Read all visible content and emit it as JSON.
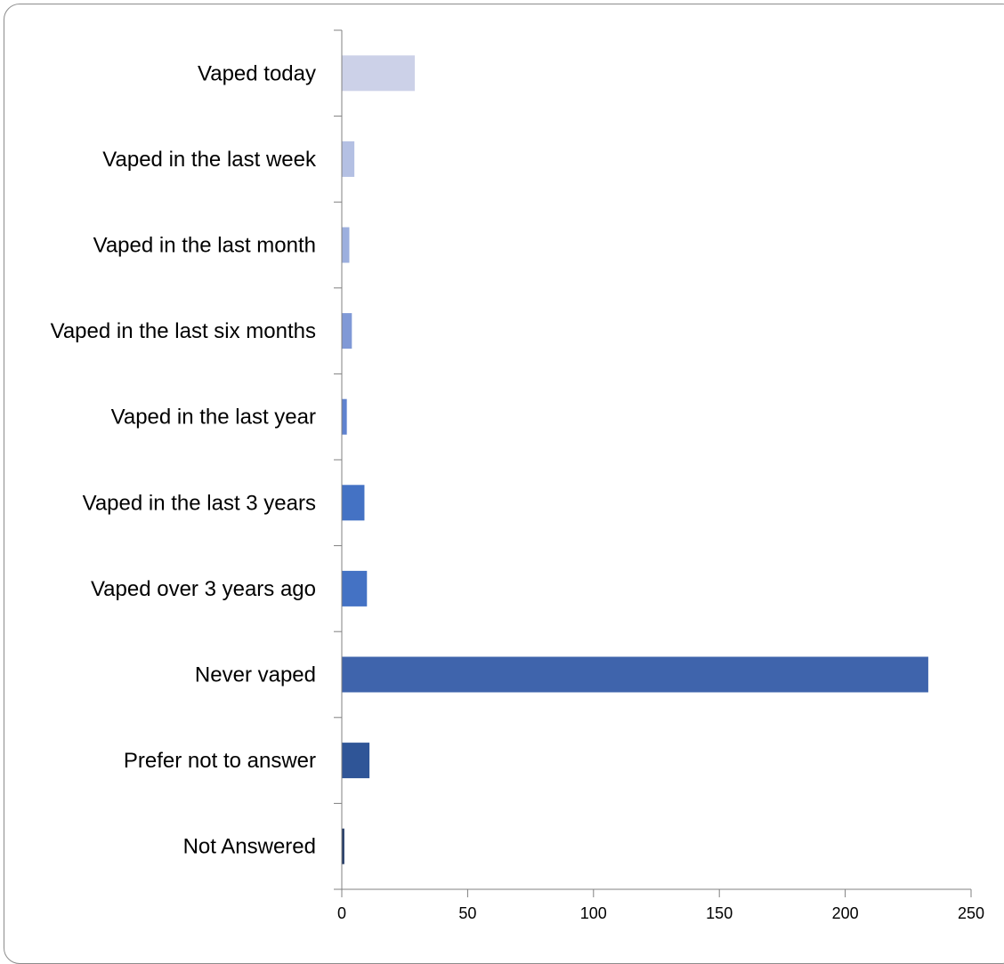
{
  "chart_data": {
    "type": "bar",
    "orientation": "horizontal",
    "title": "",
    "xlabel": "",
    "ylabel": "",
    "categories": [
      "Vaped today",
      "Vaped in the last week",
      "Vaped in the last month",
      "Vaped in the last six months",
      "Vaped in the last year",
      "Vaped in the last 3 years",
      "Vaped over 3 years ago",
      "Never vaped",
      "Prefer not to answer",
      "Not Answered"
    ],
    "values": [
      29,
      5,
      3,
      4,
      2,
      9,
      10,
      233,
      11,
      1
    ],
    "bar_colors": [
      "#CCD1E8",
      "#B4C0E3",
      "#9CAFDE",
      "#8099D6",
      "#5F82CF",
      "#4472C4",
      "#4472C4",
      "#3F64AC",
      "#2F5597",
      "#203864"
    ],
    "xlim": [
      0,
      250
    ],
    "xticks": [
      0,
      50,
      100,
      150,
      200,
      250
    ],
    "grid": false,
    "legend": "none"
  }
}
